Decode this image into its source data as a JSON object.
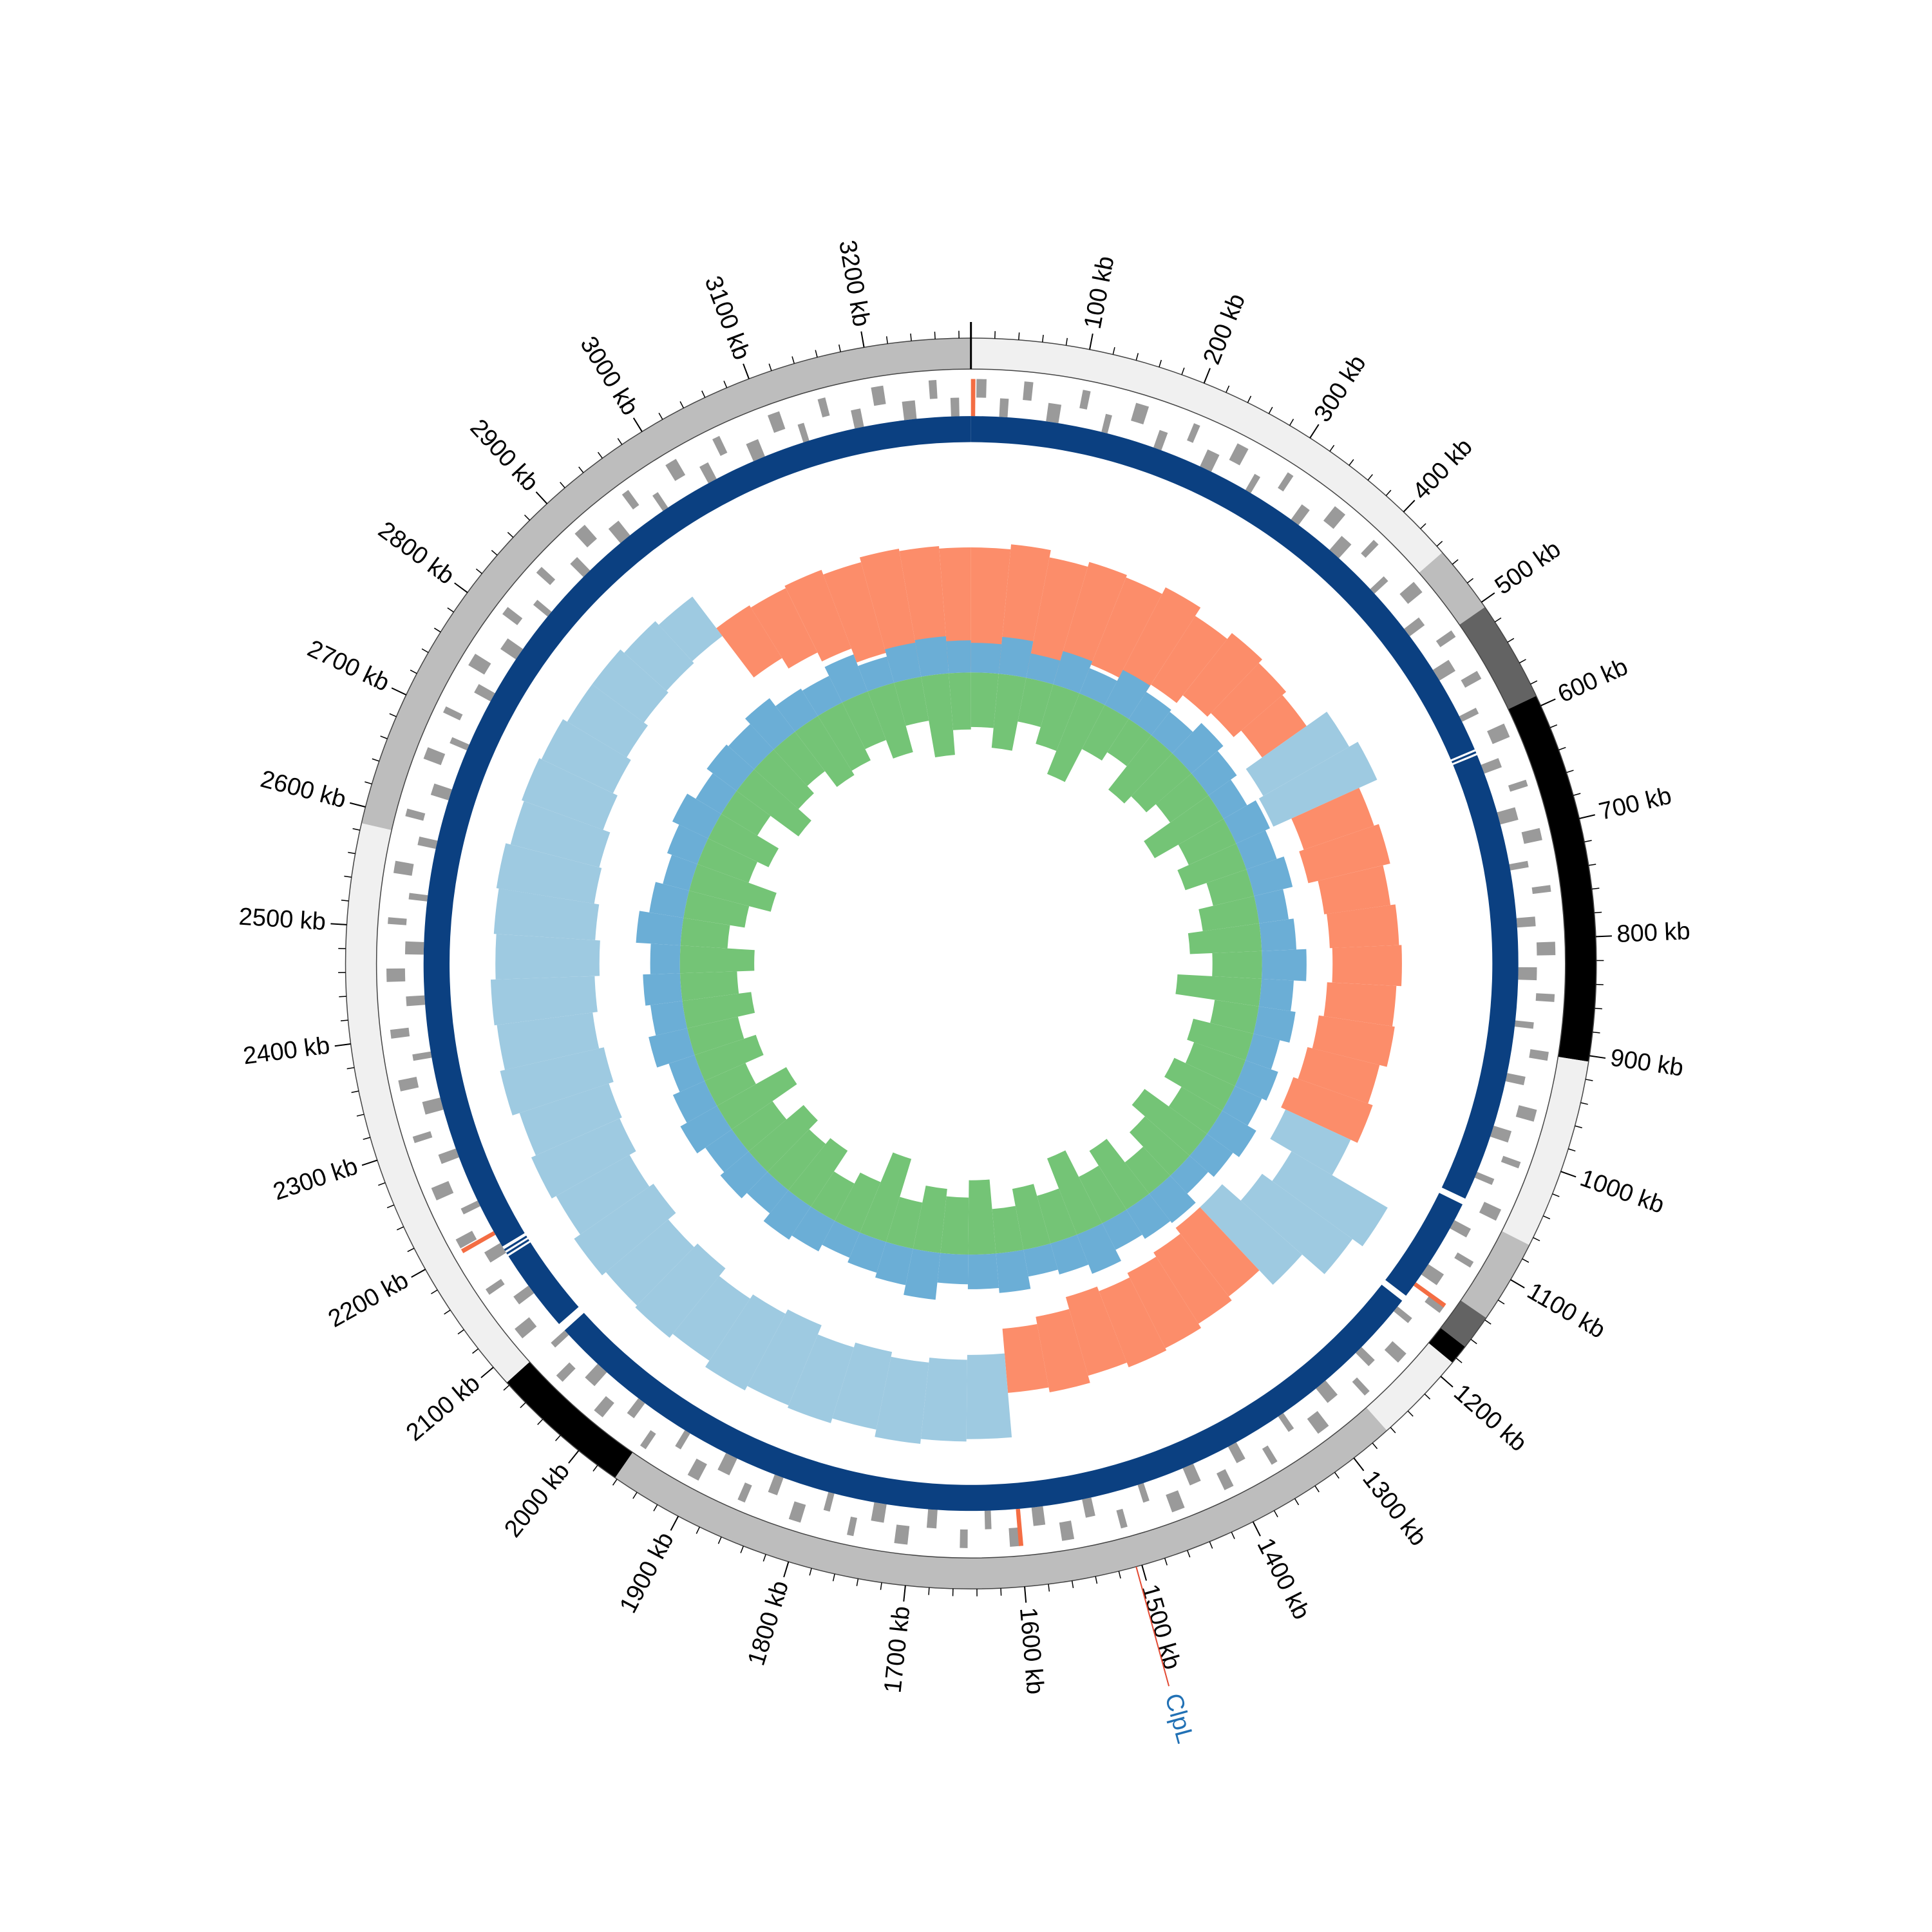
{
  "chart_data": {
    "type": "circular-genome",
    "xlim": [
      0,
      3290
    ],
    "xticks": [
      {
        "value": 100,
        "label": "100 kb"
      },
      {
        "value": 200,
        "label": "200 kb"
      },
      {
        "value": 300,
        "label": "300 kb"
      },
      {
        "value": 400,
        "label": "400 kb"
      },
      {
        "value": 500,
        "label": "500 kb"
      },
      {
        "value": 600,
        "label": "600 kb"
      },
      {
        "value": 700,
        "label": "700 kb"
      },
      {
        "value": 800,
        "label": "800 kb"
      },
      {
        "value": 900,
        "label": "900 kb"
      },
      {
        "value": 1000,
        "label": "1000 kb"
      },
      {
        "value": 1100,
        "label": "1100 kb"
      },
      {
        "value": 1200,
        "label": "1200 kb"
      },
      {
        "value": 1300,
        "label": "1300 kb"
      },
      {
        "value": 1400,
        "label": "1400 kb"
      },
      {
        "value": 1500,
        "label": "1500 kb"
      },
      {
        "value": 1600,
        "label": "1600 kb"
      },
      {
        "value": 1700,
        "label": "1700 kb"
      },
      {
        "value": 1800,
        "label": "1800 kb"
      },
      {
        "value": 1900,
        "label": "1900 kb"
      },
      {
        "value": 2000,
        "label": "2000 kb"
      },
      {
        "value": 2100,
        "label": "2100 kb"
      },
      {
        "value": 2200,
        "label": "2200 kb"
      },
      {
        "value": 2300,
        "label": "2300 kb"
      },
      {
        "value": 2400,
        "label": "2400 kb"
      },
      {
        "value": 2500,
        "label": "2500 kb"
      },
      {
        "value": 2600,
        "label": "2600 kb"
      },
      {
        "value": 2700,
        "label": "2700 kb"
      },
      {
        "value": 2800,
        "label": "2800 kb"
      },
      {
        "value": 2900,
        "label": "2900 kb"
      },
      {
        "value": 3000,
        "label": "3000 kb"
      },
      {
        "value": 3100,
        "label": "3100 kb"
      },
      {
        "value": 3200,
        "label": "3200 kb"
      }
    ],
    "minor_tick_step": 20,
    "outer_ring": [
      {
        "start": 0,
        "end": 447,
        "color": "#f0f0f0"
      },
      {
        "start": 447,
        "end": 505,
        "color": "#bdbdbd"
      },
      {
        "start": 505,
        "end": 591,
        "color": "#636363"
      },
      {
        "start": 591,
        "end": 905,
        "color": "#000000"
      },
      {
        "start": 905,
        "end": 1067,
        "color": "#f0f0f0"
      },
      {
        "start": 1067,
        "end": 1138,
        "color": "#bdbdbd"
      },
      {
        "start": 1138,
        "end": 1168,
        "color": "#636363"
      },
      {
        "start": 1168,
        "end": 1185,
        "color": "#000000"
      },
      {
        "start": 1185,
        "end": 1264,
        "color": "#f0f0f0"
      },
      {
        "start": 1264,
        "end": 1962,
        "color": "#bdbdbd"
      },
      {
        "start": 1962,
        "end": 2083,
        "color": "#000000"
      },
      {
        "start": 2083,
        "end": 2586,
        "color": "#f0f0f0"
      },
      {
        "start": 2586,
        "end": 3290,
        "color": "#bdbdbd"
      }
    ],
    "genes": {
      "color": "#9a9a9a",
      "forward": [
        [
          5,
          14
        ],
        [
          48,
          56
        ],
        [
          101,
          108
        ],
        [
          150,
          162
        ],
        [
          205,
          211
        ],
        [
          248,
          259
        ],
        [
          300,
          306
        ],
        [
          352,
          364
        ],
        [
          398,
          404
        ],
        [
          450,
          462
        ],
        [
          505,
          512
        ],
        [
          548,
          556
        ],
        [
          601,
          614
        ],
        [
          655,
          661
        ],
        [
          700,
          711
        ],
        [
          752,
          758
        ],
        [
          803,
          815
        ],
        [
          850,
          857
        ],
        [
          902,
          910
        ],
        [
          955,
          966
        ],
        [
          1004,
          1010
        ],
        [
          1050,
          1061
        ],
        [
          1103,
          1109
        ],
        [
          1150,
          1158
        ],
        [
          1205,
          1216
        ],
        [
          1252,
          1258
        ],
        [
          1300,
          1312
        ],
        [
          1356,
          1362
        ],
        [
          1401,
          1410
        ],
        [
          1449,
          1461
        ],
        [
          1503,
          1509
        ],
        [
          1552,
          1563
        ],
        [
          1601,
          1610
        ],
        [
          1648,
          1655
        ],
        [
          1702,
          1714
        ],
        [
          1751,
          1757
        ],
        [
          1800,
          1811
        ],
        [
          1853,
          1860
        ],
        [
          1899,
          1910
        ],
        [
          1954,
          1960
        ],
        [
          2002,
          2012
        ],
        [
          2050,
          2058
        ],
        [
          2103,
          2114
        ],
        [
          2152,
          2158
        ],
        [
          2201,
          2210
        ],
        [
          2249,
          2261
        ],
        [
          2304,
          2310
        ],
        [
          2352,
          2362
        ],
        [
          2400,
          2408
        ],
        [
          2451,
          2463
        ],
        [
          2503,
          2509
        ],
        [
          2549,
          2560
        ],
        [
          2601,
          2608
        ],
        [
          2655,
          2666
        ],
        [
          2700,
          2706
        ],
        [
          2748,
          2760
        ],
        [
          2803,
          2811
        ],
        [
          2851,
          2858
        ],
        [
          2900,
          2912
        ],
        [
          2955,
          2962
        ],
        [
          3002,
          3013
        ],
        [
          3050,
          3057
        ],
        [
          3104,
          3115
        ],
        [
          3151,
          3158
        ],
        [
          3200,
          3211
        ],
        [
          3252,
          3259
        ]
      ],
      "reverse": [
        [
          27,
          35
        ],
        [
          72,
          84
        ],
        [
          126,
          132
        ],
        [
          178,
          186
        ],
        [
          226,
          238
        ],
        [
          275,
          281
        ],
        [
          327,
          336
        ],
        [
          374,
          386
        ],
        [
          428,
          434
        ],
        [
          478,
          487
        ],
        [
          526,
          538
        ],
        [
          577,
          583
        ],
        [
          628,
          637
        ],
        [
          676,
          688
        ],
        [
          727,
          733
        ],
        [
          779,
          788
        ],
        [
          826,
          838
        ],
        [
          877,
          883
        ],
        [
          928,
          936
        ],
        [
          980,
          991
        ],
        [
          1027,
          1033
        ],
        [
          1078,
          1087
        ],
        [
          1127,
          1139
        ],
        [
          1177,
          1183
        ],
        [
          1229,
          1237
        ],
        [
          1276,
          1288
        ],
        [
          1327,
          1333
        ],
        [
          1380,
          1389
        ],
        [
          1426,
          1437
        ],
        [
          1477,
          1483
        ],
        [
          1529,
          1538
        ],
        [
          1576,
          1587
        ],
        [
          1626,
          1632
        ],
        [
          1677,
          1686
        ],
        [
          1726,
          1738
        ],
        [
          1777,
          1783
        ],
        [
          1828,
          1837
        ],
        [
          1876,
          1888
        ],
        [
          1927,
          1933
        ],
        [
          1979,
          1987
        ],
        [
          2026,
          2038
        ],
        [
          2077,
          2083
        ],
        [
          2129,
          2138
        ],
        [
          2176,
          2187
        ],
        [
          2227,
          2233
        ],
        [
          2278,
          2287
        ],
        [
          2326,
          2338
        ],
        [
          2377,
          2383
        ],
        [
          2428,
          2437
        ],
        [
          2476,
          2488
        ],
        [
          2527,
          2533
        ],
        [
          2578,
          2586
        ],
        [
          2626,
          2637
        ],
        [
          2677,
          2683
        ],
        [
          2729,
          2738
        ],
        [
          2776,
          2788
        ],
        [
          2827,
          2833
        ],
        [
          2878,
          2887
        ],
        [
          2926,
          2938
        ],
        [
          2977,
          2983
        ],
        [
          3028,
          3037
        ],
        [
          3076,
          3088
        ],
        [
          3127,
          3133
        ],
        [
          3178,
          3187
        ],
        [
          3226,
          3238
        ],
        [
          3271,
          3279
        ]
      ]
    },
    "rna_genes": {
      "color": "#f46d43",
      "positions": [
        [
          0,
          4
        ],
        [
          1148,
          1152
        ],
        [
          1598,
          1602
        ],
        [
          2196,
          2200
        ]
      ]
    },
    "contigs": {
      "color": "#0b4081",
      "segments": [
        [
          0,
          612
        ],
        [
          614,
          616
        ],
        [
          618,
          1055
        ],
        [
          1061,
          1164
        ],
        [
          1170,
          2083
        ],
        [
          2091,
          2172
        ],
        [
          2174,
          2176
        ],
        [
          2178,
          2180
        ],
        [
          2183,
          3290
        ]
      ]
    },
    "gc_content": {
      "bin_size": 50,
      "ylim": [
        0,
        100
      ],
      "segments": [
        {
          "start": 0,
          "end": 483,
          "color": "#fc8d6a"
        },
        {
          "start": 483,
          "end": 580,
          "color": "#9ecae1"
        },
        {
          "start": 580,
          "end": 1075,
          "color": "#fc8d6a"
        },
        {
          "start": 1075,
          "end": 1251,
          "color": "#9ecae1"
        },
        {
          "start": 1251,
          "end": 1613,
          "color": "#fc8d6a"
        },
        {
          "start": 1613,
          "end": 2930,
          "color": "#9ecae1"
        },
        {
          "start": 2930,
          "end": 3290,
          "color": "#fc8d6a"
        }
      ],
      "min": [
        18,
        22,
        20,
        26,
        30,
        28,
        34,
        38,
        40,
        44,
        36,
        34,
        42,
        40,
        44,
        45,
        46,
        44,
        42,
        40,
        38,
        40,
        50,
        45,
        35,
        35,
        38,
        40,
        42,
        40,
        45,
        48,
        58,
        60,
        62,
        60,
        62,
        58,
        60,
        62,
        58,
        60,
        56,
        58,
        55,
        54,
        52,
        54,
        52,
        50,
        52,
        54,
        55,
        58,
        60,
        62,
        64,
        65,
        66,
        45,
        40,
        36,
        30,
        26,
        22,
        20
      ],
      "max": [
        68,
        70,
        67,
        69,
        68,
        71,
        67,
        70,
        68,
        66,
        76,
        80,
        72,
        74,
        71,
        73,
        74,
        72,
        73,
        70,
        72,
        69,
        95,
        90,
        78,
        70,
        72,
        74,
        75,
        73,
        76,
        74,
        92,
        93,
        95,
        92,
        94,
        93,
        95,
        92,
        94,
        93,
        95,
        92,
        94,
        92,
        95,
        93,
        94,
        92,
        93,
        94,
        92,
        93,
        92,
        90,
        90,
        88,
        86,
        70,
        69,
        70,
        68,
        70,
        69,
        68
      ]
    },
    "gc_skew": {
      "bin_size": 50,
      "ylim": [
        -40,
        20
      ],
      "positive_color": "#6baed6",
      "negative_color": "#74c476",
      "positive": [
        12,
        15,
        10,
        14,
        11,
        16,
        13,
        12,
        17,
        14,
        11,
        15,
        13,
        16,
        12,
        14,
        18,
        13,
        15,
        11,
        14,
        12,
        16,
        13,
        10,
        15,
        14,
        12,
        17,
        13,
        11,
        16,
        14,
        12,
        19,
        15,
        13,
        11,
        14,
        16,
        12,
        15,
        13,
        17,
        14,
        11,
        16,
        13,
        15,
        12,
        18,
        14,
        11,
        13,
        16,
        12,
        15,
        14,
        17,
        13,
        12,
        16,
        11,
        14,
        15,
        13
      ],
      "negative": [
        -22,
        -30,
        -18,
        -25,
        -35,
        -20,
        -16,
        -28,
        -24,
        -19,
        -32,
        -21,
        -26,
        -17,
        -23,
        -29,
        -20,
        -34,
        -18,
        -25,
        -22,
        -27,
        -19,
        -31,
        -24,
        -16,
        -28,
        -21,
        -33,
        -20,
        -25,
        -18,
        -30,
        -23,
        -26,
        -19,
        -35,
        -22,
        -17,
        -27,
        -24,
        -29,
        -20,
        -32,
        -18,
        -26,
        -21,
        -28,
        -23,
        -30,
        -19,
        -25,
        -34,
        -22,
        -27,
        -17,
        -31,
        -24,
        -20,
        -28,
        -26,
        -21,
        -29,
        -18,
        -33,
        -23
      ]
    },
    "annotation": {
      "label": "ClpL",
      "position": 1505,
      "line_color": "#e34a33",
      "text_color": "#2171b5"
    }
  }
}
